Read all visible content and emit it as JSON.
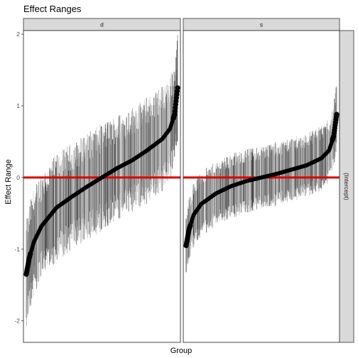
{
  "chart_data": {
    "type": "scatter",
    "title": "Effect Ranges",
    "xlabel": "Group",
    "ylabel": "Effect Range",
    "ylim": [
      -2.3,
      2.05
    ],
    "yticks": [
      -2,
      -1,
      0,
      1,
      2
    ],
    "ytick_labels": [
      "-2",
      "-1",
      "0",
      "1",
      "2"
    ],
    "reference_line": {
      "y": 0,
      "color": "#dd0000"
    },
    "row_strip_label": "(Intercept)",
    "grid": false,
    "colors": {
      "point": "#000000",
      "reference": "#dd0000",
      "strip_fill": "#d9d9d9",
      "strip_border": "#333333",
      "panel_border": "#333333"
    },
    "panels": [
      {
        "label": "d",
        "n_groups": 400,
        "estimate_quantiles": {
          "p": [
            0,
            0.02,
            0.05,
            0.1,
            0.2,
            0.3,
            0.4,
            0.5,
            0.6,
            0.7,
            0.8,
            0.9,
            0.95,
            0.98,
            1
          ],
          "value": [
            -1.35,
            -1.12,
            -0.9,
            -0.68,
            -0.42,
            -0.27,
            -0.13,
            0.0,
            0.13,
            0.24,
            0.38,
            0.54,
            0.68,
            0.88,
            1.25
          ]
        },
        "interval_halfwidth_range": [
          0.35,
          0.75
        ]
      },
      {
        "label": "s",
        "n_groups": 400,
        "estimate_quantiles": {
          "p": [
            0,
            0.02,
            0.05,
            0.1,
            0.2,
            0.3,
            0.4,
            0.5,
            0.6,
            0.7,
            0.8,
            0.9,
            0.95,
            0.98,
            1
          ],
          "value": [
            -0.95,
            -0.72,
            -0.52,
            -0.37,
            -0.22,
            -0.12,
            -0.05,
            0.0,
            0.05,
            0.11,
            0.17,
            0.27,
            0.38,
            0.58,
            0.88
          ]
        },
        "interval_halfwidth_range": [
          0.25,
          0.45
        ]
      }
    ]
  }
}
